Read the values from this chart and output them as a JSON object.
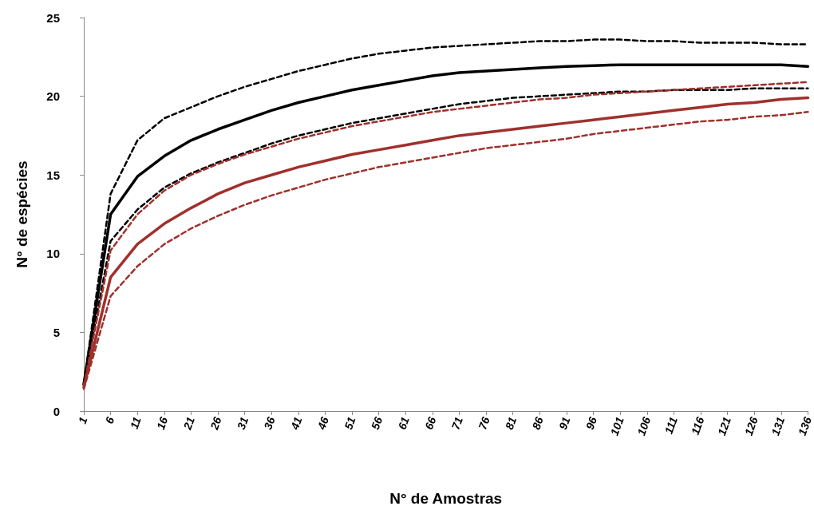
{
  "chart_data": {
    "type": "line",
    "xlabel": "N° de Amostras",
    "ylabel": "N° de espécies",
    "categories": [
      "1",
      "6",
      "11",
      "16",
      "21",
      "26",
      "31",
      "36",
      "41",
      "46",
      "51",
      "56",
      "61",
      "66",
      "71",
      "76",
      "81",
      "86",
      "91",
      "96",
      "101",
      "106",
      "111",
      "116",
      "121",
      "126",
      "131",
      "136"
    ],
    "ylim": [
      0,
      25
    ],
    "yticks": [
      0,
      5,
      10,
      15,
      20,
      25
    ],
    "grid": false,
    "marker": "none",
    "series": [
      {
        "color": "#000000",
        "line_style": "dashed",
        "values": [
          1.7,
          13.8,
          17.2,
          18.6,
          19.3,
          20.0,
          20.6,
          21.1,
          21.6,
          22.0,
          22.4,
          22.7,
          22.9,
          23.1,
          23.2,
          23.3,
          23.4,
          23.5,
          23.5,
          23.6,
          23.6,
          23.5,
          23.5,
          23.4,
          23.4,
          23.4,
          23.3,
          23.3
        ]
      },
      {
        "color": "#000000",
        "line_style": "solid",
        "values": [
          1.7,
          12.5,
          14.9,
          16.2,
          17.2,
          17.9,
          18.5,
          19.1,
          19.6,
          20.0,
          20.4,
          20.7,
          21.0,
          21.3,
          21.5,
          21.6,
          21.7,
          21.8,
          21.9,
          21.95,
          22.0,
          22.0,
          22.0,
          22.0,
          22.0,
          22.0,
          22.0,
          21.9
        ]
      },
      {
        "color": "#000000",
        "line_style": "dashed",
        "values": [
          1.7,
          10.8,
          12.8,
          14.2,
          15.1,
          15.8,
          16.4,
          17.0,
          17.5,
          17.9,
          18.3,
          18.6,
          18.9,
          19.2,
          19.5,
          19.7,
          19.9,
          20.0,
          20.1,
          20.2,
          20.3,
          20.3,
          20.4,
          20.4,
          20.4,
          20.5,
          20.5,
          20.5
        ]
      },
      {
        "color": "#a0302c",
        "line_style": "dashed",
        "values": [
          1.6,
          10.2,
          12.5,
          14.0,
          15.0,
          15.7,
          16.3,
          16.8,
          17.3,
          17.7,
          18.1,
          18.4,
          18.7,
          19.0,
          19.2,
          19.4,
          19.6,
          19.8,
          19.9,
          20.1,
          20.2,
          20.3,
          20.4,
          20.5,
          20.6,
          20.7,
          20.8,
          20.9
        ]
      },
      {
        "color": "#a0302c",
        "line_style": "solid",
        "values": [
          1.5,
          8.5,
          10.6,
          11.9,
          12.9,
          13.8,
          14.5,
          15.0,
          15.5,
          15.9,
          16.3,
          16.6,
          16.9,
          17.2,
          17.5,
          17.7,
          17.9,
          18.1,
          18.3,
          18.5,
          18.7,
          18.9,
          19.1,
          19.3,
          19.5,
          19.6,
          19.8,
          19.9
        ]
      },
      {
        "color": "#a0302c",
        "line_style": "dashed",
        "values": [
          1.4,
          7.3,
          9.2,
          10.6,
          11.6,
          12.4,
          13.1,
          13.7,
          14.2,
          14.7,
          15.1,
          15.5,
          15.8,
          16.1,
          16.4,
          16.7,
          16.9,
          17.1,
          17.3,
          17.6,
          17.8,
          18.0,
          18.2,
          18.4,
          18.5,
          18.7,
          18.8,
          19.0
        ]
      }
    ]
  }
}
